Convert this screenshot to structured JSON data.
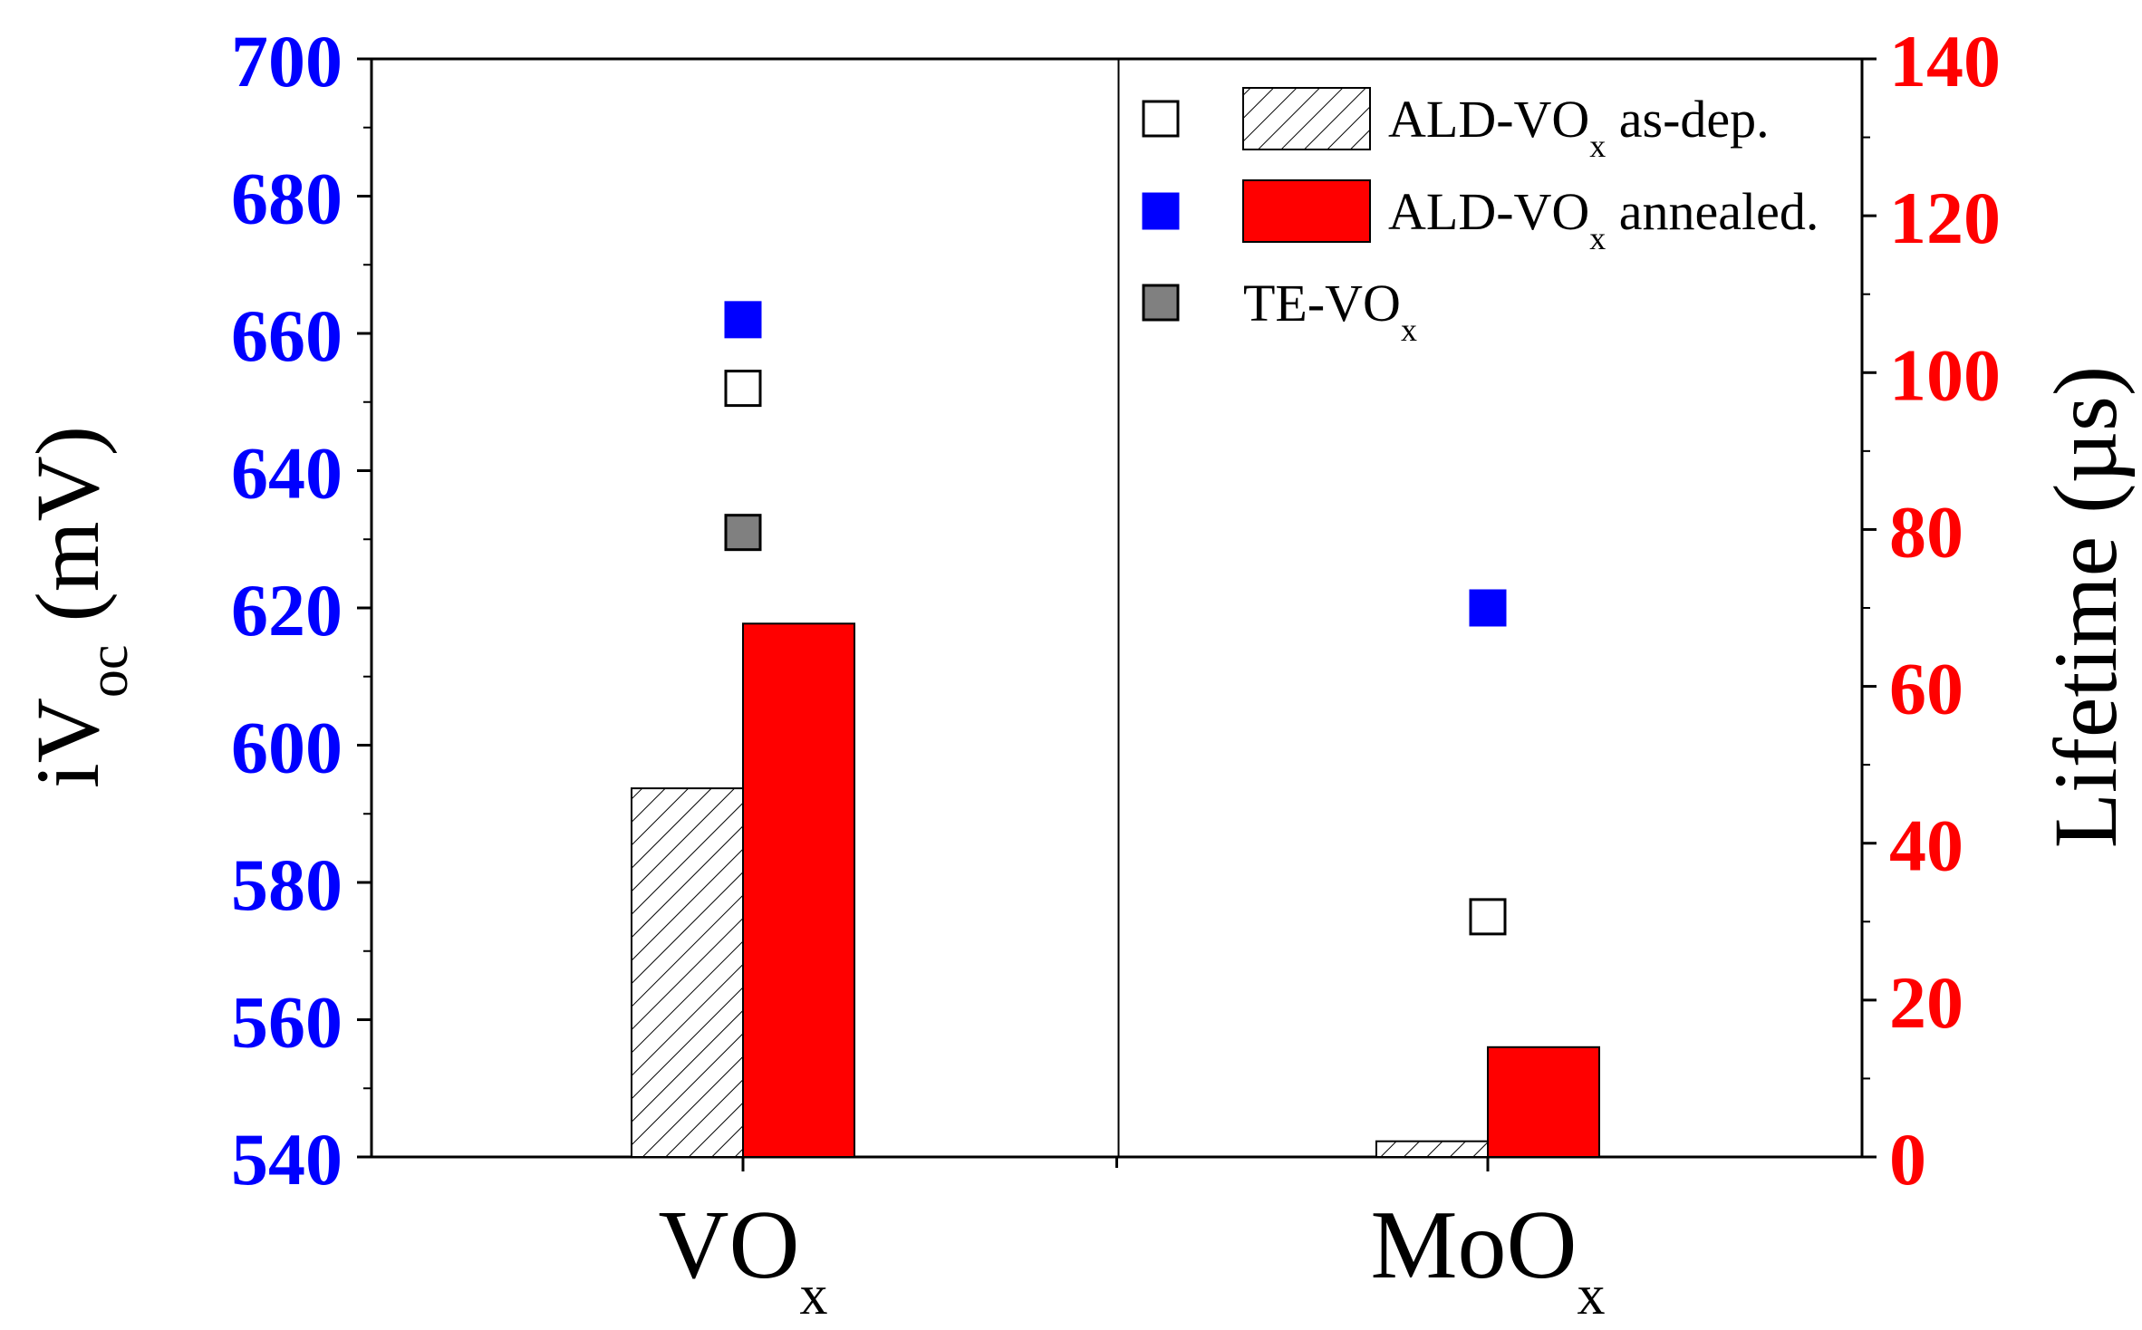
{
  "chart_data": {
    "type": "bar",
    "categories": [
      {
        "base": "VO",
        "sub": "x"
      },
      {
        "base": "MoO",
        "sub": "x"
      }
    ],
    "left_axis": {
      "label_main": "iV",
      "label_sub": "oc",
      "label_unit": " (mV)",
      "range": [
        540,
        700
      ],
      "ticks": [
        540,
        560,
        580,
        600,
        620,
        640,
        660,
        680,
        700
      ],
      "color": "#0000ff"
    },
    "right_axis": {
      "label": "Lifetime (µs)",
      "range": [
        0,
        140
      ],
      "ticks": [
        0,
        20,
        40,
        60,
        80,
        100,
        120,
        140
      ],
      "color": "#ff0000"
    },
    "bar_series": [
      {
        "name": "ALD-VOx as-dep.",
        "axis": "right",
        "style": "hatched",
        "values": [
          47,
          2
        ]
      },
      {
        "name": "ALD-VOx annealed.",
        "axis": "right",
        "color": "#ff0000",
        "values": [
          68,
          14
        ]
      }
    ],
    "point_series": [
      {
        "name": "ALD-VOx as-dep.",
        "axis": "left",
        "marker": "open-square",
        "values": [
          652,
          575
        ]
      },
      {
        "name": "ALD-VOx annealed.",
        "axis": "left",
        "marker": "filled-square",
        "color": "#0000ff",
        "values": [
          662,
          620
        ]
      },
      {
        "name": "TE-VOx",
        "axis": "left",
        "marker": "filled-square",
        "color": "#808080",
        "values": [
          631,
          null
        ]
      }
    ],
    "legend": {
      "position": "top-right",
      "entries": [
        {
          "base": "ALD-VO",
          "sub": "x",
          "suffix": " as-dep."
        },
        {
          "base": "ALD-VO",
          "sub": "x",
          "suffix": " annealed."
        },
        {
          "base": "TE-VO",
          "sub": "x",
          "suffix": ""
        }
      ]
    }
  }
}
